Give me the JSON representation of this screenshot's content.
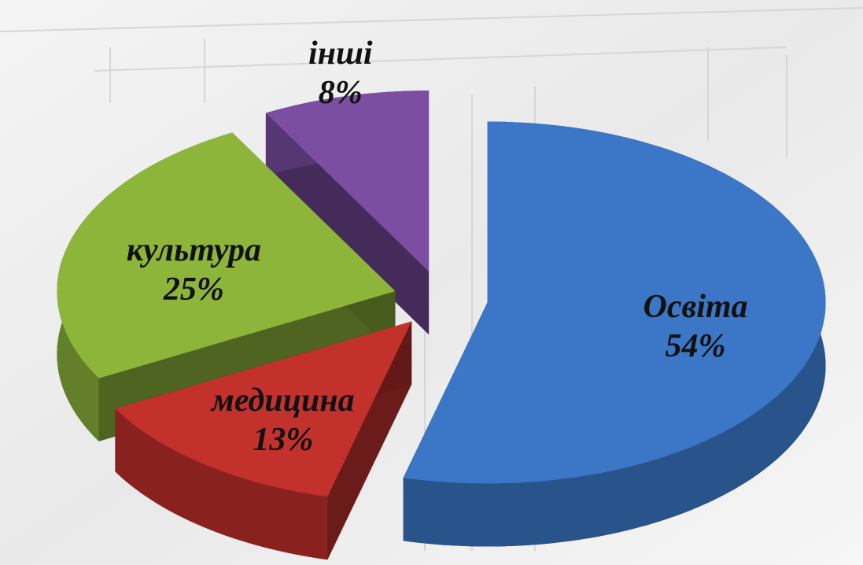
{
  "chart_data": {
    "type": "pie",
    "categories": [
      "Освіта",
      "медицина",
      "культура",
      "інші"
    ],
    "values": [
      54,
      13,
      25,
      8
    ],
    "value_labels": [
      "54%",
      "13%",
      "25%",
      "8%"
    ],
    "colors": [
      "#3b77c6",
      "#c3312d",
      "#8db53a",
      "#7b4ea1"
    ]
  }
}
